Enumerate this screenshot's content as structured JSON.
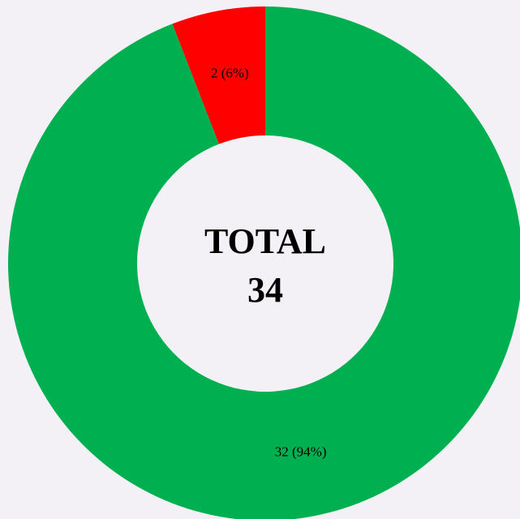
{
  "chart_data": {
    "type": "donut",
    "values": [
      32,
      2
    ],
    "value_labels": [
      "32 (94%)",
      "2 (6%)"
    ],
    "colors": [
      "#00b050",
      "#ff0000"
    ],
    "center_title": "TOTAL",
    "total": 34
  }
}
